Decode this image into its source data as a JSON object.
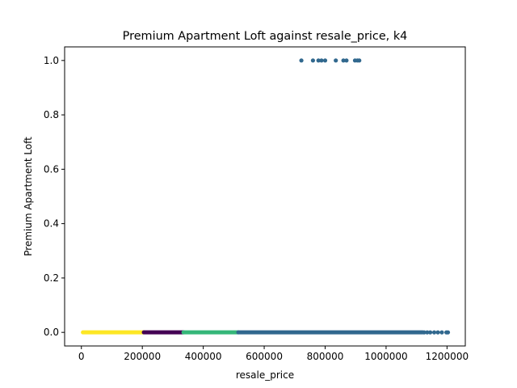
{
  "chart_data": {
    "type": "scatter",
    "title": "Premium Apartment Loft against resale_price, k4",
    "xlabel": "resale_price",
    "ylabel": "Premium Apartment Loft",
    "xlim": [
      -55000,
      1260000
    ],
    "ylim": [
      -0.05,
      1.05
    ],
    "x_ticks": [
      0,
      200000,
      400000,
      600000,
      800000,
      1000000,
      1200000
    ],
    "x_tick_labels": [
      "0",
      "200000",
      "400000",
      "600000",
      "800000",
      "1000000",
      "1200000"
    ],
    "y_ticks": [
      0.0,
      0.2,
      0.4,
      0.6,
      0.8,
      1.0
    ],
    "y_tick_labels": [
      "0.0",
      "0.2",
      "0.4",
      "0.6",
      "0.8",
      "1.0"
    ],
    "grid": false,
    "legend": "none",
    "clusters": [
      {
        "color": "#fde725",
        "x_range": [
          5000,
          205000
        ],
        "y": 0
      },
      {
        "color": "#440154",
        "x_range": [
          205000,
          335000
        ],
        "y": 0
      },
      {
        "color": "#35b779",
        "x_range": [
          335000,
          515000
        ],
        "y": 0
      },
      {
        "color": "#31688e",
        "x_range": [
          515000,
          1120000
        ],
        "y": 0
      }
    ],
    "points": [
      {
        "x": 1125000,
        "y": 0,
        "color": "#31688e"
      },
      {
        "x": 1135000,
        "y": 0,
        "color": "#31688e"
      },
      {
        "x": 1145000,
        "y": 0,
        "color": "#31688e"
      },
      {
        "x": 1158000,
        "y": 0,
        "color": "#31688e"
      },
      {
        "x": 1170000,
        "y": 0,
        "color": "#31688e"
      },
      {
        "x": 1183000,
        "y": 0,
        "color": "#31688e"
      },
      {
        "x": 1198000,
        "y": 0,
        "color": "#31688e"
      },
      {
        "x": 1203000,
        "y": 0,
        "color": "#31688e"
      },
      {
        "x": 722000,
        "y": 1,
        "color": "#31688e"
      },
      {
        "x": 760000,
        "y": 1,
        "color": "#31688e"
      },
      {
        "x": 778000,
        "y": 1,
        "color": "#31688e"
      },
      {
        "x": 788000,
        "y": 1,
        "color": "#31688e"
      },
      {
        "x": 800000,
        "y": 1,
        "color": "#31688e"
      },
      {
        "x": 835000,
        "y": 1,
        "color": "#31688e"
      },
      {
        "x": 860000,
        "y": 1,
        "color": "#31688e"
      },
      {
        "x": 870000,
        "y": 1,
        "color": "#31688e"
      },
      {
        "x": 898000,
        "y": 1,
        "color": "#31688e"
      },
      {
        "x": 906000,
        "y": 1,
        "color": "#31688e"
      },
      {
        "x": 912000,
        "y": 1,
        "color": "#31688e"
      }
    ]
  }
}
